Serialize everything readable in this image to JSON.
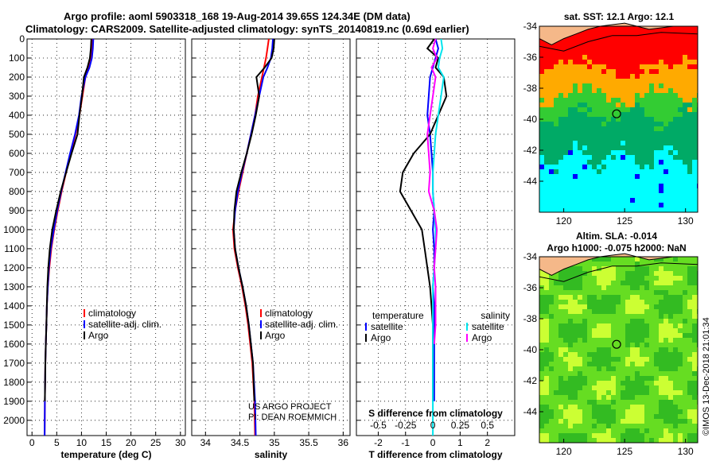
{
  "header": {
    "line1": "Argo profile: aoml 5903318_168 19-Aug-2014 39.65S 124.34E (DM data)",
    "line2": "Climatology: CARS2009. Satellite-adjusted climatology: synTS_20140819.nc (0.69d earlier)"
  },
  "credit": {
    "line1": "US ARGO PROJECT",
    "line2": "PI: DEAN ROEMMICH"
  },
  "stamp": "©IMOS 13-Dec-2018 21:01:34",
  "colors": {
    "climatology": "#ff0000",
    "satellite": "#0000ff",
    "argo": "#000000",
    "sal_sat": "#00e5ee",
    "sal_argo": "#ff00ff"
  },
  "chart_data": [
    {
      "type": "line",
      "xlabel": "temperature (deg C)",
      "ylim": [
        2080,
        0
      ],
      "xlim": [
        -1,
        31
      ],
      "xticks": [
        0,
        5,
        10,
        15,
        20,
        25,
        30
      ],
      "yticks": [
        0,
        100,
        200,
        300,
        400,
        500,
        600,
        700,
        800,
        900,
        1000,
        1100,
        1200,
        1300,
        1400,
        1500,
        1600,
        1700,
        1800,
        1900,
        2000
      ],
      "legend": [
        "climatology",
        "satellite-adj. clim.",
        "Argo"
      ],
      "series": [
        {
          "name": "climatology",
          "color": "#ff0000",
          "x": [
            12.2,
            12.1,
            11.9,
            11.5,
            10.8,
            10.2,
            9.6,
            8.8,
            7.8,
            6.9,
            6.0,
            5.2,
            4.5,
            3.9,
            3.5,
            3.2,
            3.0,
            2.9,
            2.8,
            2.7,
            2.6,
            2.55
          ],
          "y": [
            0,
            50,
            100,
            150,
            200,
            300,
            400,
            500,
            600,
            700,
            800,
            900,
            1000,
            1100,
            1200,
            1300,
            1400,
            1500,
            1600,
            1700,
            1900,
            2080
          ]
        },
        {
          "name": "satellite-adj. clim.",
          "color": "#0000ff",
          "x": [
            12.4,
            12.3,
            12.1,
            11.6,
            10.8,
            10.0,
            9.5,
            8.7,
            7.7,
            6.8,
            5.9,
            5.1,
            4.4,
            3.8,
            3.4,
            3.2,
            3.0,
            2.9,
            2.8,
            2.7,
            2.6,
            2.55
          ],
          "y": [
            0,
            50,
            100,
            150,
            200,
            300,
            400,
            500,
            600,
            700,
            800,
            900,
            1000,
            1100,
            1200,
            1300,
            1400,
            1500,
            1600,
            1700,
            1900,
            2080
          ]
        },
        {
          "name": "Argo",
          "color": "#000000",
          "x": [
            12.0,
            11.9,
            11.7,
            11.2,
            10.5,
            10.1,
            9.6,
            9.2,
            8.0,
            6.9,
            5.8,
            4.9,
            4.1,
            3.6,
            3.3,
            3.1,
            3.0,
            2.9,
            2.8,
            2.7,
            2.6
          ],
          "y": [
            0,
            50,
            100,
            150,
            200,
            300,
            400,
            500,
            600,
            700,
            800,
            900,
            1000,
            1100,
            1200,
            1300,
            1400,
            1500,
            1600,
            1700,
            1900
          ]
        }
      ]
    },
    {
      "type": "line",
      "xlabel": "salinity",
      "ylim": [
        2080,
        0
      ],
      "xlim": [
        33.8,
        36.1
      ],
      "xticks": [
        34,
        34.5,
        35,
        35.5,
        36
      ],
      "legend": [
        "climatology",
        "satellite-adj. clim.",
        "Argo"
      ],
      "series": [
        {
          "name": "climatology",
          "color": "#ff0000",
          "x": [
            34.92,
            34.9,
            34.88,
            34.85,
            34.82,
            34.76,
            34.72,
            34.66,
            34.6,
            34.54,
            34.48,
            34.43,
            34.4,
            34.42,
            34.47,
            34.53,
            34.58,
            34.62,
            34.65,
            34.68,
            34.71,
            34.72
          ],
          "y": [
            0,
            50,
            100,
            150,
            200,
            300,
            400,
            500,
            600,
            700,
            800,
            900,
            1000,
            1100,
            1200,
            1300,
            1400,
            1500,
            1600,
            1700,
            1900,
            2080
          ]
        },
        {
          "name": "satellite-adj. clim.",
          "color": "#0000ff",
          "x": [
            34.98,
            34.97,
            34.95,
            34.9,
            34.84,
            34.78,
            34.72,
            34.66,
            34.6,
            34.53,
            34.47,
            34.43,
            34.41,
            34.43,
            34.48,
            34.54,
            34.59,
            34.63,
            34.66,
            34.69,
            34.72,
            34.73
          ],
          "y": [
            0,
            50,
            100,
            150,
            200,
            300,
            400,
            500,
            600,
            700,
            800,
            900,
            1000,
            1100,
            1200,
            1300,
            1400,
            1500,
            1600,
            1700,
            1900,
            2080
          ]
        },
        {
          "name": "Argo",
          "color": "#000000",
          "x": [
            35.0,
            34.99,
            34.96,
            34.86,
            34.74,
            34.78,
            34.73,
            34.67,
            34.6,
            34.52,
            34.45,
            34.42,
            34.41,
            34.43,
            34.48,
            34.54,
            34.59,
            34.63,
            34.66,
            34.69,
            34.71
          ],
          "y": [
            0,
            50,
            100,
            150,
            200,
            300,
            400,
            500,
            600,
            700,
            800,
            900,
            1000,
            1100,
            1200,
            1300,
            1400,
            1500,
            1600,
            1700,
            1900
          ]
        }
      ]
    },
    {
      "type": "line",
      "xlabel": "T difference from climatology",
      "xlabel_top": "S difference from climatology",
      "ylim": [
        2080,
        0
      ],
      "xlim": [
        -2.8,
        3.0
      ],
      "xticks": [
        -2,
        -1,
        0,
        1,
        2
      ],
      "xticks_top": [
        "-0.5",
        "-0.25",
        "0",
        "0.25",
        "0.5"
      ],
      "legend_left": {
        "title": "temperature",
        "items": [
          "satellite",
          "Argo"
        ]
      },
      "legend_right": {
        "title": "salinity",
        "items": [
          "satellite",
          "Argo"
        ]
      },
      "series": [
        {
          "name": "T satellite",
          "color": "#0000ff",
          "x": [
            0.1,
            0.2,
            0.1,
            0.0,
            -0.1,
            -0.15,
            -0.2,
            -0.1,
            -0.05,
            0.0,
            0.0,
            0.05,
            0.0,
            0.05,
            0.05,
            0.0,
            0.05,
            0.05,
            0.05,
            0.05,
            0.05
          ],
          "y": [
            0,
            50,
            100,
            150,
            200,
            300,
            400,
            500,
            600,
            700,
            800,
            900,
            1000,
            1100,
            1200,
            1300,
            1400,
            1500,
            1600,
            1700,
            1900
          ]
        },
        {
          "name": "T Argo",
          "color": "#000000",
          "x": [
            0.05,
            -0.2,
            0.2,
            0.1,
            0.4,
            0.5,
            0.2,
            -0.1,
            -0.7,
            -1.1,
            -1.2,
            -0.8,
            -0.4,
            -0.3,
            -0.2,
            -0.1,
            -0.05,
            0.0,
            0.0,
            0.0,
            0.0
          ],
          "y": [
            0,
            50,
            100,
            150,
            200,
            300,
            400,
            500,
            600,
            700,
            800,
            900,
            1000,
            1100,
            1200,
            1300,
            1400,
            1500,
            1600,
            1700,
            1900
          ]
        },
        {
          "name": "S satellite",
          "color": "#00e5ee",
          "x": [
            0.3,
            0.35,
            0.25,
            0.2,
            0.4,
            0.3,
            0.2,
            0.1,
            0.05,
            0.0,
            0.0,
            0.05,
            0.1,
            0.1,
            0.05,
            0.0,
            0.0,
            0.0,
            0.0,
            0.0,
            0.0,
            0.0
          ],
          "y": [
            0,
            50,
            100,
            150,
            200,
            300,
            400,
            500,
            600,
            700,
            800,
            900,
            1000,
            1100,
            1200,
            1300,
            1400,
            1500,
            1600,
            1700,
            1900,
            2080
          ]
        },
        {
          "name": "S Argo",
          "color": "#ff00ff",
          "x": [
            0.1,
            0.0,
            0.15,
            -0.05,
            0.1,
            0.0,
            -0.1,
            -0.2,
            -0.15,
            -0.1,
            -0.15,
            0.05,
            0.15,
            0.1,
            0.05,
            0.1,
            0.1,
            0.1,
            0.05
          ],
          "y": [
            0,
            50,
            100,
            150,
            200,
            300,
            400,
            500,
            600,
            700,
            800,
            900,
            1000,
            1100,
            1200,
            1300,
            1400,
            1500,
            1600
          ]
        }
      ]
    },
    {
      "type": "heatmap",
      "title": "sat. SST: 12.1 Argo: 12.1",
      "xlim": [
        118,
        131
      ],
      "ylim": [
        -46,
        -34
      ],
      "xticks": [
        120,
        125,
        130
      ],
      "yticks": [
        -34,
        -36,
        -38,
        -40,
        -42,
        -44
      ],
      "marker": {
        "lon": 124.34,
        "lat": -39.65
      }
    },
    {
      "type": "heatmap",
      "title": "Altim. SLA: -0.014",
      "subtitle": "Argo h1000: -0.075 h2000: NaN",
      "xlim": [
        118,
        131
      ],
      "ylim": [
        -46,
        -34
      ],
      "xticks": [
        120,
        125,
        130
      ],
      "yticks": [
        -34,
        -36,
        -38,
        -40,
        -42,
        -44
      ],
      "marker": {
        "lon": 124.34,
        "lat": -39.65
      }
    }
  ]
}
